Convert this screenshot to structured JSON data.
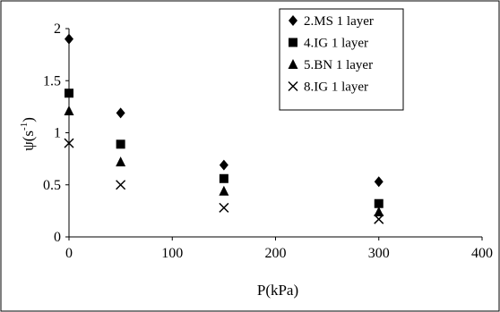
{
  "chart_data": {
    "type": "scatter",
    "title": "",
    "xlabel": "P(kPa)",
    "ylabel_main": "ψ(s",
    "ylabel_sup": "-1",
    "ylabel_close": ")",
    "xlim": [
      0,
      400
    ],
    "ylim": [
      0,
      2
    ],
    "xticks": [
      0,
      100,
      200,
      300,
      400
    ],
    "yticks": [
      0,
      0.5,
      1,
      1.5,
      2
    ],
    "xtick_labels": [
      "0",
      "100",
      "200",
      "300",
      "400"
    ],
    "ytick_labels": [
      "0",
      "0.5",
      "1",
      "1.5",
      "2"
    ],
    "grid": false,
    "legend_position": "top-right",
    "series": [
      {
        "name": "2.MS 1 layer",
        "marker": "diamond",
        "x": [
          0,
          50,
          150,
          300
        ],
        "y": [
          1.9,
          1.19,
          0.69,
          0.53
        ]
      },
      {
        "name": "4.IG 1 layer",
        "marker": "square",
        "x": [
          0,
          50,
          150,
          300
        ],
        "y": [
          1.38,
          0.89,
          0.56,
          0.32
        ]
      },
      {
        "name": "5.BN 1 layer",
        "marker": "triangle",
        "x": [
          0,
          50,
          150,
          300
        ],
        "y": [
          1.21,
          0.72,
          0.44,
          0.24
        ]
      },
      {
        "name": "8.IG 1 layer",
        "marker": "cross",
        "x": [
          0,
          50,
          150,
          300
        ],
        "y": [
          0.9,
          0.5,
          0.28,
          0.17
        ]
      }
    ]
  }
}
